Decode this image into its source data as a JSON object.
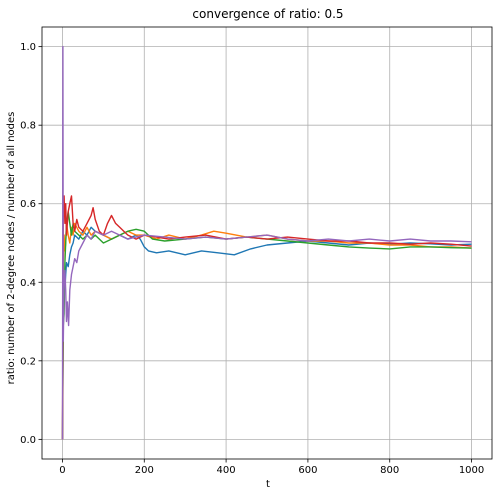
{
  "chart_data": {
    "type": "line",
    "title": "convergence of ratio: 0.5",
    "xlabel": "t",
    "ylabel": "ratio: number of 2-degree nodes / number of all nodes",
    "xlim": [
      -50,
      1050
    ],
    "ylim": [
      -0.05,
      1.05
    ],
    "xticks": [
      0,
      200,
      400,
      600,
      800,
      1000
    ],
    "yticks": [
      0.0,
      0.2,
      0.4,
      0.6,
      0.8,
      1.0
    ],
    "xtick_labels": [
      "0",
      "200",
      "400",
      "600",
      "800",
      "1000"
    ],
    "ytick_labels": [
      "0.0",
      "0.2",
      "0.4",
      "0.6",
      "0.8",
      "1.0"
    ],
    "grid": true,
    "legend": "none",
    "colors": {
      "blue": "#1f77b4",
      "orange": "#ff7f0e",
      "green": "#2ca02c",
      "red": "#d62728",
      "purple": "#9467bd"
    },
    "series": [
      {
        "color": "#1f77b4",
        "x": [
          0,
          2,
          4,
          6,
          8,
          10,
          14,
          18,
          22,
          26,
          30,
          40,
          50,
          60,
          70,
          80,
          100,
          120,
          140,
          160,
          180,
          190,
          200,
          210,
          230,
          260,
          300,
          340,
          380,
          420,
          460,
          500,
          550,
          600,
          650,
          700,
          750,
          800,
          850,
          900,
          950,
          1000
        ],
        "y": [
          0.0,
          0.35,
          0.4,
          0.38,
          0.42,
          0.45,
          0.44,
          0.47,
          0.49,
          0.5,
          0.52,
          0.51,
          0.53,
          0.52,
          0.54,
          0.53,
          0.52,
          0.51,
          0.52,
          0.51,
          0.52,
          0.51,
          0.49,
          0.48,
          0.475,
          0.48,
          0.47,
          0.48,
          0.475,
          0.47,
          0.485,
          0.495,
          0.5,
          0.505,
          0.5,
          0.495,
          0.5,
          0.497,
          0.5,
          0.498,
          0.495,
          0.497
        ]
      },
      {
        "color": "#ff7f0e",
        "x": [
          0,
          2,
          4,
          6,
          8,
          10,
          14,
          18,
          22,
          26,
          30,
          40,
          50,
          60,
          70,
          80,
          100,
          120,
          140,
          160,
          180,
          200,
          230,
          260,
          300,
          340,
          370,
          400,
          450,
          500,
          550,
          600,
          650,
          700,
          750,
          800,
          850,
          900,
          950,
          1000
        ],
        "y": [
          0.0,
          0.45,
          0.52,
          0.48,
          0.5,
          0.55,
          0.52,
          0.5,
          0.54,
          0.52,
          0.55,
          0.53,
          0.52,
          0.54,
          0.52,
          0.53,
          0.52,
          0.51,
          0.52,
          0.53,
          0.52,
          0.52,
          0.51,
          0.52,
          0.51,
          0.52,
          0.53,
          0.525,
          0.515,
          0.52,
          0.51,
          0.505,
          0.505,
          0.5,
          0.5,
          0.495,
          0.495,
          0.49,
          0.49,
          0.487
        ]
      },
      {
        "color": "#2ca02c",
        "x": [
          0,
          2,
          4,
          6,
          8,
          10,
          14,
          18,
          22,
          26,
          30,
          40,
          50,
          60,
          70,
          80,
          100,
          120,
          140,
          160,
          180,
          200,
          220,
          250,
          300,
          350,
          400,
          450,
          500,
          550,
          600,
          650,
          700,
          750,
          800,
          850,
          900,
          950,
          1000
        ],
        "y": [
          0.0,
          0.29,
          0.32,
          0.45,
          0.5,
          0.55,
          0.58,
          0.55,
          0.52,
          0.55,
          0.53,
          0.52,
          0.51,
          0.52,
          0.51,
          0.52,
          0.5,
          0.51,
          0.52,
          0.53,
          0.535,
          0.53,
          0.51,
          0.505,
          0.51,
          0.515,
          0.51,
          0.515,
          0.51,
          0.505,
          0.5,
          0.495,
          0.49,
          0.487,
          0.485,
          0.49,
          0.49,
          0.488,
          0.487
        ]
      },
      {
        "color": "#d62728",
        "x": [
          0,
          2,
          4,
          6,
          8,
          10,
          14,
          18,
          22,
          26,
          30,
          35,
          40,
          50,
          60,
          70,
          75,
          80,
          90,
          100,
          110,
          120,
          130,
          140,
          150,
          160,
          180,
          200,
          230,
          260,
          300,
          350,
          400,
          450,
          500,
          550,
          600,
          650,
          700,
          750,
          800,
          850,
          900,
          950,
          1000
        ],
        "y": [
          0.0,
          0.58,
          0.62,
          0.55,
          0.6,
          0.52,
          0.58,
          0.6,
          0.62,
          0.55,
          0.53,
          0.56,
          0.54,
          0.53,
          0.55,
          0.57,
          0.59,
          0.56,
          0.53,
          0.52,
          0.55,
          0.57,
          0.55,
          0.54,
          0.53,
          0.52,
          0.51,
          0.52,
          0.515,
          0.51,
          0.515,
          0.52,
          0.51,
          0.515,
          0.51,
          0.515,
          0.51,
          0.505,
          0.505,
          0.5,
          0.5,
          0.497,
          0.5,
          0.497,
          0.492
        ]
      },
      {
        "color": "#9467bd",
        "x": [
          0,
          1,
          2,
          3,
          4,
          6,
          8,
          10,
          12,
          15,
          18,
          22,
          26,
          30,
          35,
          40,
          50,
          60,
          70,
          80,
          100,
          120,
          140,
          160,
          180,
          200,
          250,
          300,
          350,
          400,
          450,
          500,
          550,
          600,
          650,
          700,
          750,
          800,
          850,
          900,
          950,
          1000
        ],
        "y": [
          0.0,
          1.0,
          0.25,
          0.33,
          0.4,
          0.43,
          0.38,
          0.3,
          0.35,
          0.29,
          0.38,
          0.42,
          0.44,
          0.46,
          0.45,
          0.48,
          0.5,
          0.52,
          0.51,
          0.53,
          0.52,
          0.53,
          0.52,
          0.51,
          0.515,
          0.52,
          0.515,
          0.51,
          0.515,
          0.51,
          0.515,
          0.52,
          0.51,
          0.505,
          0.51,
          0.505,
          0.51,
          0.505,
          0.51,
          0.505,
          0.505,
          0.503
        ]
      }
    ]
  }
}
